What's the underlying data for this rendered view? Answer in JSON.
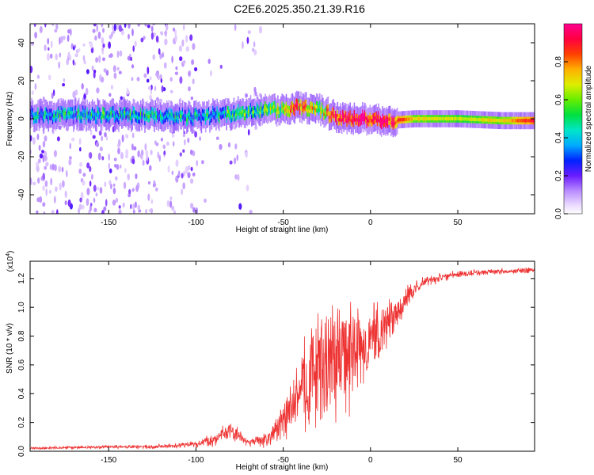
{
  "title": "C2E6.2025.350.21.39.R16",
  "chart_data": [
    {
      "type": "heatmap",
      "name": "spectrogram",
      "xlabel": "Height of straight line (km)",
      "ylabel": "Frequency (Hz)",
      "xlim": [
        -195,
        94
      ],
      "ylim": [
        -50,
        50
      ],
      "x_ticks": [
        -150,
        -100,
        -50,
        0,
        50
      ],
      "y_ticks": [
        -40,
        -20,
        0,
        20,
        40
      ],
      "colorbar": {
        "label": "Normalized spectral amplitude",
        "range": [
          0.0,
          1.0
        ],
        "ticks": [
          0.0,
          0.2,
          0.4,
          0.6,
          0.8
        ],
        "tick_labels": [
          "0.0",
          "0.2",
          "0.4",
          "0.6",
          "0.8"
        ]
      },
      "ridge": {
        "description_points_x": [
          -190,
          -150,
          -100,
          -75,
          -50,
          -42,
          -30,
          -20,
          -10,
          0,
          10,
          25,
          50,
          75,
          94
        ],
        "center_freq": [
          2,
          2,
          1,
          3,
          5,
          6,
          5,
          1,
          0,
          0,
          -1,
          0,
          0,
          -1,
          -1
        ],
        "amplitude": [
          0.3,
          0.35,
          0.3,
          0.4,
          0.55,
          0.75,
          0.5,
          0.85,
          0.9,
          0.9,
          0.85,
          0.6,
          0.55,
          0.6,
          0.8
        ]
      }
    },
    {
      "type": "line",
      "name": "snr",
      "xlabel": "Height of straight line (km)",
      "ylabel": "SNR (10 * v/v)",
      "scale_label": "(x10",
      "scale_exponent": "4",
      "scale_suffix": ")",
      "xlim": [
        -195,
        94
      ],
      "ylim": [
        0.0,
        1.32
      ],
      "x_ticks": [
        -150,
        -100,
        -50,
        0,
        50
      ],
      "y_ticks": [
        0.0,
        0.2,
        0.4,
        0.6,
        0.8,
        1.0,
        1.2
      ],
      "y_tick_labels": [
        "0.0",
        "0.2",
        "0.4",
        "0.6",
        "0.8",
        "1.0",
        "1.2"
      ],
      "color": "#ee3333",
      "envelope": {
        "x": [
          -195,
          -150,
          -130,
          -110,
          -100,
          -90,
          -85,
          -80,
          -75,
          -70,
          -60,
          -55,
          -50,
          -45,
          -40,
          -35,
          -30,
          -25,
          -20,
          -15,
          -10,
          -5,
          0,
          5,
          10,
          15,
          20,
          25,
          30,
          40,
          50,
          60,
          70,
          80,
          94
        ],
        "y": [
          0.02,
          0.03,
          0.03,
          0.04,
          0.05,
          0.08,
          0.12,
          0.14,
          0.1,
          0.06,
          0.08,
          0.14,
          0.2,
          0.3,
          0.42,
          0.52,
          0.58,
          0.62,
          0.65,
          0.65,
          0.67,
          0.7,
          0.75,
          0.82,
          0.9,
          0.98,
          1.05,
          1.12,
          1.17,
          1.21,
          1.23,
          1.24,
          1.25,
          1.25,
          1.26
        ],
        "noise_amplitude": [
          0.01,
          0.015,
          0.015,
          0.02,
          0.03,
          0.06,
          0.07,
          0.07,
          0.06,
          0.04,
          0.06,
          0.1,
          0.14,
          0.25,
          0.35,
          0.45,
          0.5,
          0.52,
          0.52,
          0.5,
          0.45,
          0.35,
          0.3,
          0.25,
          0.2,
          0.15,
          0.1,
          0.07,
          0.05,
          0.04,
          0.03,
          0.03,
          0.025,
          0.025,
          0.025
        ]
      }
    }
  ]
}
